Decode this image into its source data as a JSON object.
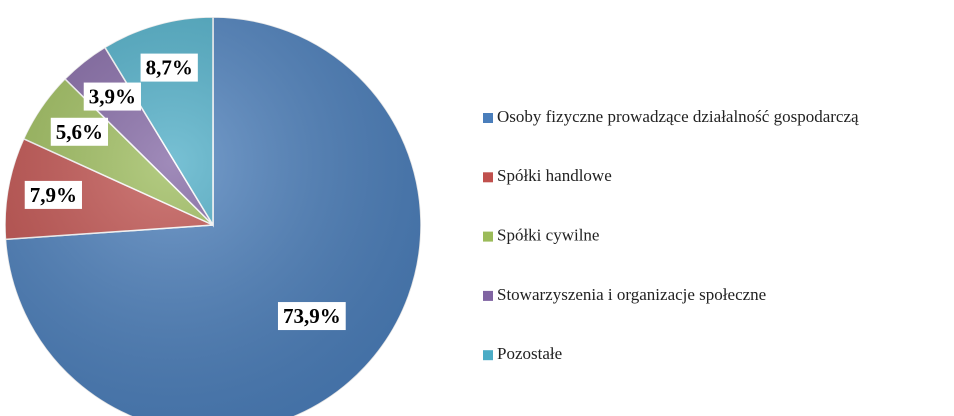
{
  "chart_data": {
    "type": "pie",
    "categories": [
      "Osoby fizyczne prowadzące działalność gospodarczą",
      "Spółki handlowe",
      "Spółki cywilne",
      "Stowarzyszenia i organizacje społeczne",
      "Pozostałe"
    ],
    "values": [
      73.9,
      7.9,
      5.6,
      3.9,
      8.7
    ],
    "value_labels": [
      "73,9%",
      "7,9%",
      "5,6%",
      "3,9%",
      "8,7%"
    ],
    "colors": [
      "#4a7ebb",
      "#c0504d",
      "#9bbb59",
      "#8064a2",
      "#4bacc6"
    ],
    "legend": "right"
  }
}
